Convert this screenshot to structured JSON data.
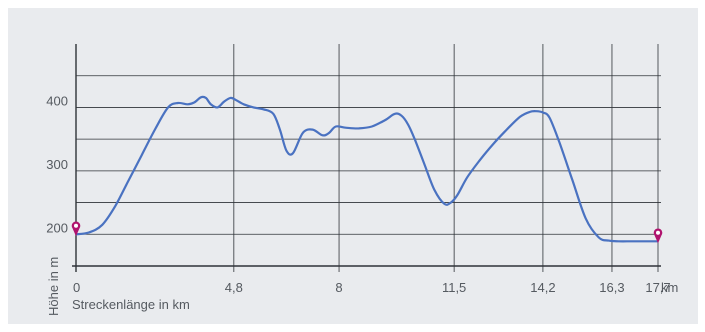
{
  "chart_data": {
    "type": "line",
    "title": "",
    "xlabel": "Streckenlänge in km",
    "ylabel": "Höhe in m",
    "x_unit_label": "km",
    "x_ticks": [
      {
        "value": 0,
        "label": "0"
      },
      {
        "value": 4.8,
        "label": "4,8"
      },
      {
        "value": 8,
        "label": "8"
      },
      {
        "value": 11.5,
        "label": "11,5"
      },
      {
        "value": 14.2,
        "label": "14,2"
      },
      {
        "value": 16.3,
        "label": "16,3"
      },
      {
        "value": 17.7,
        "label": "17,7"
      }
    ],
    "y_ticks": [
      {
        "value": 200,
        "label": "200"
      },
      {
        "value": 300,
        "label": "300"
      },
      {
        "value": 400,
        "label": "400"
      }
    ],
    "xlim": [
      0,
      17.7
    ],
    "ylim": [
      150,
      500
    ],
    "grid": true,
    "line_color": "#4a72c1",
    "marker_color": "#b0136e",
    "series": [
      {
        "x": [
          0,
          0.4,
          0.8,
          1.2,
          1.6,
          2.0,
          2.4,
          2.8,
          3.1,
          3.4,
          3.6,
          3.8,
          3.95,
          4.1,
          4.3,
          4.5,
          4.7,
          4.85,
          5.1,
          5.4,
          5.7,
          6.0,
          6.2,
          6.4,
          6.6,
          6.9,
          7.2,
          7.5,
          7.7,
          7.9,
          8.2,
          8.6,
          9.0,
          9.4,
          9.7,
          9.9,
          10.1,
          10.3,
          10.6,
          10.9,
          11.2,
          11.4,
          11.6,
          11.9,
          12.3,
          12.7,
          13.1,
          13.5,
          13.8,
          14.0,
          14.2,
          14.4,
          14.7,
          15.1,
          15.5,
          15.9,
          16.2,
          16.5,
          16.9,
          17.3,
          17.7
        ],
        "y": [
          200,
          203,
          215,
          245,
          285,
          325,
          365,
          400,
          407,
          405,
          408,
          416,
          415,
          405,
          400,
          409,
          415,
          412,
          405,
          400,
          397,
          390,
          365,
          332,
          328,
          360,
          365,
          356,
          360,
          370,
          368,
          367,
          370,
          380,
          390,
          387,
          373,
          350,
          310,
          270,
          248,
          250,
          262,
          290,
          318,
          343,
          365,
          385,
          393,
          394,
          392,
          384,
          345,
          285,
          225,
          195,
          190,
          189,
          189,
          189,
          189
        ]
      }
    ],
    "markers": [
      {
        "x": 0,
        "y": 200
      },
      {
        "x": 17.7,
        "y": 189
      }
    ]
  }
}
